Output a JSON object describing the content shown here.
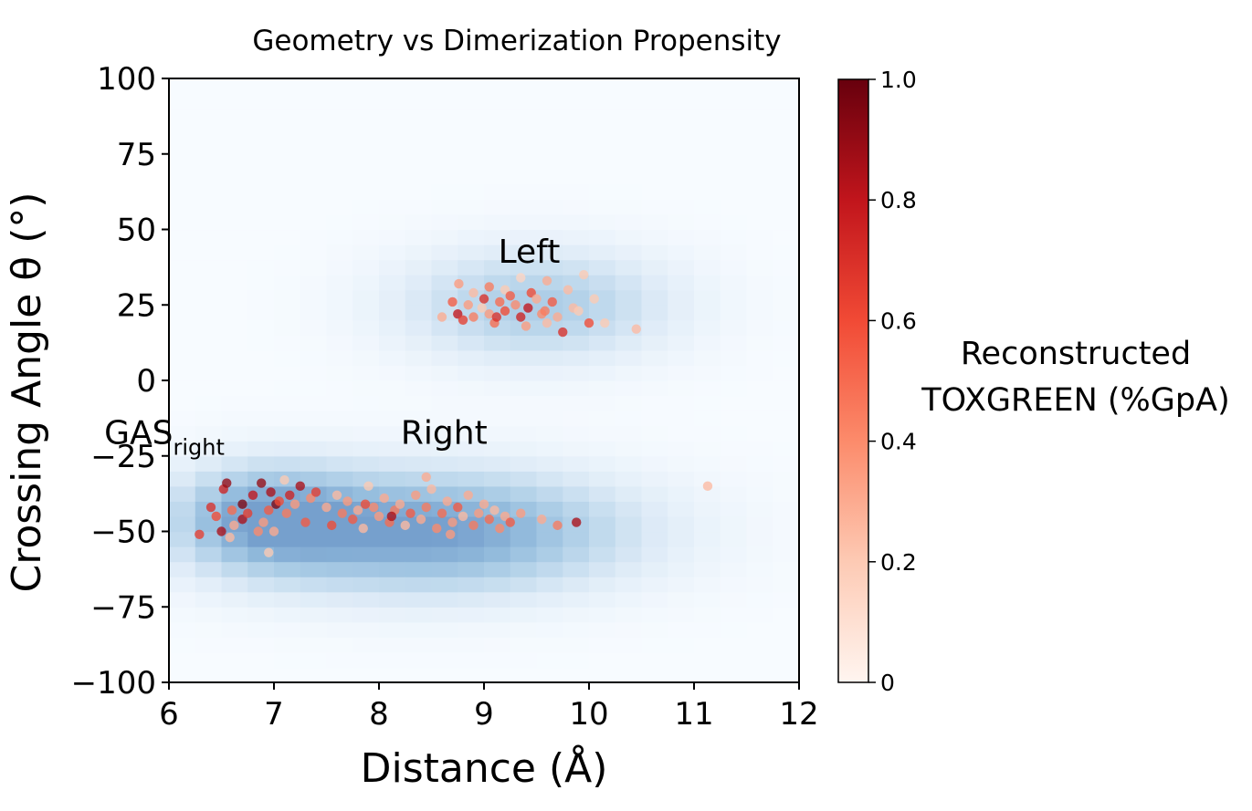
{
  "chart_data": {
    "type": "scatter",
    "title": "Geometry vs Dimerization Propensity",
    "xlabel": "Distance (Å)",
    "ylabel": "Crossing Angle θ (°)",
    "xlim": [
      6,
      12
    ],
    "ylim": [
      -100,
      100
    ],
    "xticks": [
      "6",
      "7",
      "8",
      "9",
      "10",
      "11",
      "12"
    ],
    "yticks": [
      "100",
      "75",
      "50",
      "25",
      "0",
      "−25",
      "−50",
      "−75",
      "−100"
    ],
    "grid": false,
    "background_density": {
      "type": "heatmap",
      "colormap": "blues",
      "regions": [
        {
          "name": "Left",
          "x_center": 9.5,
          "y_center": 25,
          "x_spread": 0.9,
          "y_spread": 13,
          "weight": 0.6
        },
        {
          "name": "Right",
          "x_center": 8.5,
          "y_center": -50,
          "x_spread": 1.3,
          "y_spread": 14,
          "weight": 1.0
        },
        {
          "name": "GAS_right",
          "x_center": 6.9,
          "y_center": -45,
          "x_spread": 0.6,
          "y_spread": 12,
          "weight": 0.7
        }
      ]
    },
    "annotations": [
      {
        "text": "Left",
        "x": 9.43,
        "y": 39
      },
      {
        "text": "Right",
        "x": 8.62,
        "y": -21
      },
      {
        "text": "GAS",
        "subscript": "right",
        "x": 6.34,
        "y": -21
      }
    ],
    "colorbar": {
      "colormap": "reds",
      "label_lines": [
        "Reconstructed",
        "TOXGREEN (%GpA)"
      ],
      "range": [
        0,
        1
      ],
      "ticks": [
        "1.0",
        "0.8",
        "0.6",
        "0.4",
        "0.2",
        "0"
      ]
    },
    "points": [
      [
        8.76,
        32,
        0.35
      ],
      [
        8.9,
        29,
        0.25
      ],
      [
        9.05,
        31,
        0.45
      ],
      [
        9.2,
        30,
        0.2
      ],
      [
        9.35,
        34,
        0.15
      ],
      [
        9.45,
        29,
        0.6
      ],
      [
        9.6,
        33,
        0.3
      ],
      [
        9.8,
        30,
        0.25
      ],
      [
        9.95,
        35,
        0.2
      ],
      [
        8.7,
        26,
        0.55
      ],
      [
        8.85,
        25,
        0.35
      ],
      [
        9.0,
        27,
        0.7
      ],
      [
        9.15,
        26,
        0.5
      ],
      [
        9.3,
        25,
        0.4
      ],
      [
        9.5,
        27,
        0.3
      ],
      [
        9.65,
        26,
        0.55
      ],
      [
        9.85,
        24,
        0.25
      ],
      [
        10.05,
        27,
        0.2
      ],
      [
        8.75,
        22,
        0.8
      ],
      [
        8.9,
        21,
        0.45
      ],
      [
        9.05,
        22,
        0.35
      ],
      [
        9.2,
        23,
        0.6
      ],
      [
        9.35,
        21,
        0.75
      ],
      [
        9.55,
        22,
        0.4
      ],
      [
        9.7,
        21,
        0.3
      ],
      [
        9.9,
        23,
        0.2
      ],
      [
        8.8,
        20,
        0.65
      ],
      [
        9.1,
        19,
        0.5
      ],
      [
        9.4,
        18,
        0.35
      ],
      [
        9.6,
        19,
        0.25
      ],
      [
        9.75,
        16,
        0.7
      ],
      [
        10.0,
        19,
        0.6
      ],
      [
        10.15,
        19,
        0.2
      ],
      [
        10.45,
        17,
        0.25
      ],
      [
        8.6,
        21,
        0.3
      ],
      [
        9.25,
        28,
        0.55
      ],
      [
        9.42,
        24,
        0.8
      ],
      [
        9.58,
        23,
        0.45
      ],
      [
        8.98,
        24,
        0.2
      ],
      [
        9.12,
        21,
        0.7
      ],
      [
        6.29,
        -51,
        0.65
      ],
      [
        6.4,
        -42,
        0.7
      ],
      [
        6.45,
        -45,
        0.6
      ],
      [
        6.5,
        -50,
        0.85
      ],
      [
        6.52,
        -36,
        0.75
      ],
      [
        6.55,
        -34,
        0.9
      ],
      [
        6.6,
        -43,
        0.5
      ],
      [
        6.62,
        -48,
        0.3
      ],
      [
        6.7,
        -46,
        0.85
      ],
      [
        6.7,
        -41,
        0.95
      ],
      [
        6.75,
        -44,
        0.65
      ],
      [
        6.8,
        -38,
        0.8
      ],
      [
        6.85,
        -50,
        0.4
      ],
      [
        6.88,
        -34,
        0.9
      ],
      [
        6.9,
        -47,
        0.35
      ],
      [
        6.95,
        -43,
        0.55
      ],
      [
        6.97,
        -37,
        0.85
      ],
      [
        7.0,
        -50,
        0.3
      ],
      [
        7.02,
        -41,
        0.95
      ],
      [
        7.05,
        -40,
        0.6
      ],
      [
        7.1,
        -33,
        0.2
      ],
      [
        7.12,
        -44,
        0.45
      ],
      [
        7.15,
        -38,
        0.75
      ],
      [
        7.2,
        -41,
        0.35
      ],
      [
        7.25,
        -35,
        0.85
      ],
      [
        7.3,
        -47,
        0.55
      ],
      [
        7.35,
        -39,
        0.4
      ],
      [
        7.4,
        -37,
        0.65
      ],
      [
        6.95,
        -57,
        0.2
      ],
      [
        6.58,
        -52,
        0.25
      ],
      [
        7.5,
        -42,
        0.3
      ],
      [
        7.55,
        -48,
        0.6
      ],
      [
        7.6,
        -38,
        0.25
      ],
      [
        7.65,
        -44,
        0.45
      ],
      [
        7.7,
        -40,
        0.35
      ],
      [
        7.75,
        -46,
        0.55
      ],
      [
        7.8,
        -43,
        0.3
      ],
      [
        7.85,
        -49,
        0.25
      ],
      [
        7.9,
        -35,
        0.2
      ],
      [
        7.95,
        -42,
        0.4
      ],
      [
        8.0,
        -45,
        0.35
      ],
      [
        8.05,
        -39,
        0.3
      ],
      [
        8.1,
        -47,
        0.5
      ],
      [
        8.15,
        -43,
        0.45
      ],
      [
        8.2,
        -41,
        0.3
      ],
      [
        8.25,
        -48,
        0.25
      ],
      [
        8.3,
        -44,
        0.55
      ],
      [
        8.35,
        -38,
        0.35
      ],
      [
        8.4,
        -46,
        0.3
      ],
      [
        8.45,
        -42,
        0.45
      ],
      [
        8.5,
        -36,
        0.25
      ],
      [
        8.55,
        -49,
        0.4
      ],
      [
        8.6,
        -44,
        0.5
      ],
      [
        8.65,
        -40,
        0.3
      ],
      [
        8.7,
        -47,
        0.35
      ],
      [
        8.75,
        -42,
        0.55
      ],
      [
        8.8,
        -45,
        0.25
      ],
      [
        8.85,
        -38,
        0.3
      ],
      [
        8.9,
        -48,
        0.45
      ],
      [
        8.95,
        -44,
        0.35
      ],
      [
        9.0,
        -41,
        0.3
      ],
      [
        9.05,
        -46,
        0.5
      ],
      [
        9.1,
        -43,
        0.25
      ],
      [
        9.15,
        -49,
        0.4
      ],
      [
        9.2,
        -45,
        0.3
      ],
      [
        9.25,
        -47,
        0.55
      ],
      [
        9.35,
        -44,
        0.35
      ],
      [
        9.55,
        -46,
        0.3
      ],
      [
        9.7,
        -48,
        0.45
      ],
      [
        9.88,
        -47,
        0.85
      ],
      [
        11.13,
        -35,
        0.25
      ],
      [
        8.45,
        -32,
        0.3
      ],
      [
        8.12,
        -45,
        0.85
      ],
      [
        7.87,
        -41,
        0.6
      ],
      [
        8.68,
        -51,
        0.35
      ]
    ]
  }
}
